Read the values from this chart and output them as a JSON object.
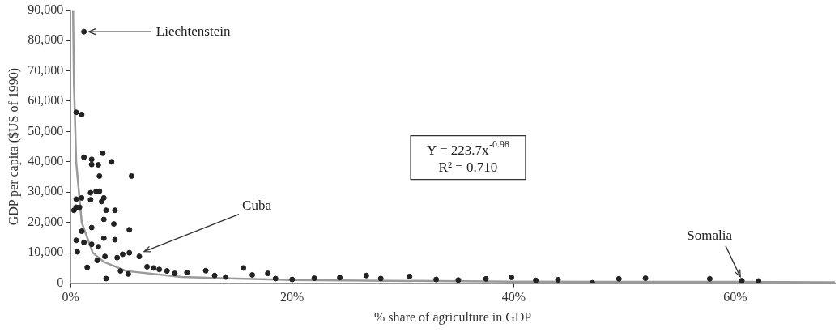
{
  "chart_data": {
    "type": "scatter",
    "xlabel": "% share of agriculture in GDP",
    "ylabel": "GDP per capita ($US of 1990)",
    "xlim": [
      0,
      69
    ],
    "ylim": [
      0,
      90000
    ],
    "xticks": [
      {
        "value": 0,
        "label": "0%"
      },
      {
        "value": 20,
        "label": "20%"
      },
      {
        "value": 40,
        "label": "40%"
      },
      {
        "value": 60,
        "label": "60%"
      }
    ],
    "yticks": [
      {
        "value": 0,
        "label": "0"
      },
      {
        "value": 10000,
        "label": "10,000"
      },
      {
        "value": 20000,
        "label": "20,000"
      },
      {
        "value": 30000,
        "label": "30,000"
      },
      {
        "value": 40000,
        "label": "40,000"
      },
      {
        "value": 50000,
        "label": "50,000"
      },
      {
        "value": 60000,
        "label": "60,000"
      },
      {
        "value": 70000,
        "label": "70,000"
      },
      {
        "value": 80000,
        "label": "80,000"
      },
      {
        "value": 90000,
        "label": "90,000"
      }
    ],
    "grid": false,
    "legend": false,
    "marker": "circle",
    "series": [
      {
        "color": "#222222",
        "x": [
          1.2,
          0.5,
          1.0,
          1.2,
          1.9,
          1.9,
          2.5,
          2.9,
          3.7,
          2.6,
          5.5,
          1.8,
          2.3,
          2.6,
          0.5,
          1.0,
          0.5,
          0.3,
          0.8,
          1.8,
          3.0,
          2.8,
          3.2,
          4.0,
          3.0,
          3.9,
          5.3,
          1.0,
          1.9,
          0.5,
          1.2,
          3.0,
          4.0,
          1.9,
          2.5,
          0.6,
          3.1,
          2.4,
          4.2,
          4.7,
          5.3,
          6.2,
          1.5,
          3.2,
          4.5,
          5.2,
          6.9,
          7.5,
          8.0,
          8.7,
          9.4,
          10.5,
          12.2,
          13.0,
          14.0,
          15.6,
          16.4,
          17.8,
          18.5,
          20.0,
          22.0,
          24.3,
          26.7,
          28.0,
          30.6,
          33.0,
          35.0,
          37.5,
          39.8,
          42.0,
          44.0,
          47.1,
          49.5,
          51.9,
          57.7,
          60.6,
          62.1
        ],
        "values": [
          82900,
          56300,
          55600,
          41500,
          40800,
          39100,
          39000,
          42800,
          40000,
          35300,
          35300,
          29800,
          30300,
          30300,
          27700,
          28100,
          25000,
          24000,
          25000,
          27500,
          28100,
          26900,
          24000,
          24000,
          21000,
          19500,
          17600,
          17100,
          18300,
          14100,
          13400,
          14800,
          14300,
          12800,
          12000,
          10300,
          8800,
          7500,
          8400,
          9500,
          10000,
          8800,
          5200,
          1500,
          4000,
          3000,
          5400,
          5000,
          4500,
          4000,
          3200,
          3500,
          4100,
          2500,
          2000,
          5000,
          2700,
          3200,
          1500,
          1200,
          1600,
          1800,
          2500,
          1500,
          2200,
          1200,
          1000,
          1400,
          1900,
          900,
          1100,
          100,
          1400,
          1600,
          1400,
          800,
          700
        ]
      },
      {
        "type": "line",
        "color": "#9a9a9a",
        "line_style": "solid",
        "marker": "none",
        "x": [
          0.22,
          0.3,
          0.5,
          1,
          2,
          3,
          5,
          10,
          20,
          40,
          60,
          69
        ],
        "values": [
          90000,
          66000,
          40000,
          20000,
          10000,
          7000,
          4000,
          2000,
          1000,
          500,
          400,
          300
        ]
      }
    ],
    "annotations": [
      {
        "text": "Liechtenstein",
        "x": 1.2,
        "y": 82900
      },
      {
        "text": "Cuba",
        "x": 6.2,
        "y": 8800
      },
      {
        "text": "Somalia",
        "x": 60.6,
        "y": 800
      },
      "Y = 223.7x$^{-0.98}$\nR² = 0.710"
    ]
  }
}
